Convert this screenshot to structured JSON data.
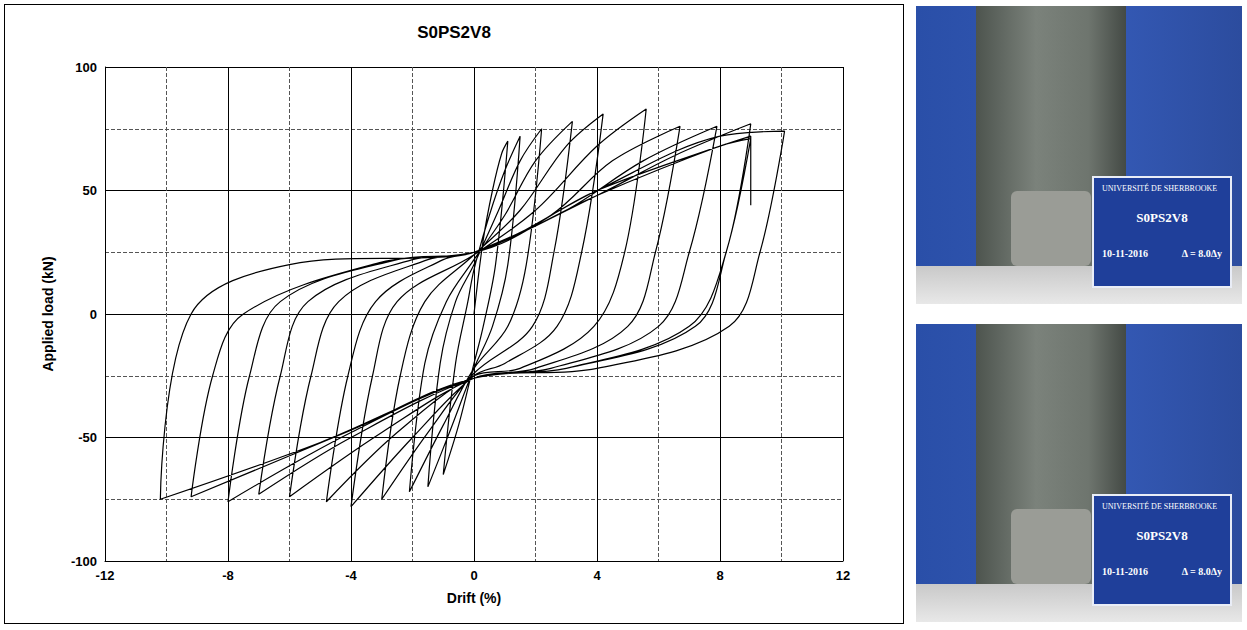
{
  "chart_data": {
    "type": "line",
    "title": "S0PS2V8",
    "x_label": "Drift (%)",
    "y_label": "Applied load (kN)",
    "xlim": [
      -12,
      12
    ],
    "xticks": [
      -12,
      -8,
      -4,
      0,
      4,
      8,
      12
    ],
    "ylim": [
      -100,
      100
    ],
    "yticks": [
      -100,
      -50,
      0,
      50,
      100
    ],
    "grid": true,
    "color": "#000000",
    "x": [
      0,
      0.3,
      0.6,
      0.9,
      1.1,
      0.7,
      0.3,
      0,
      -0.5,
      -1,
      -0.6,
      -0.2,
      0,
      0.5,
      1,
      1.5,
      1.1,
      0.6,
      0,
      -0.8,
      -1.5,
      -1.1,
      -0.6,
      0,
      0.8,
      1.5,
      2.2,
      1.7,
      1.1,
      0,
      -1,
      -2.1,
      -1.6,
      -0.9,
      0,
      1,
      2,
      3.2,
      2.6,
      1.9,
      0,
      -1.5,
      -3,
      -2.4,
      -1.6,
      0,
      1.5,
      3,
      4.2,
      3.5,
      2.7,
      1,
      0,
      -2,
      -4,
      -3.3,
      -2.5,
      0,
      2,
      4,
      5.6,
      4.9,
      3.9,
      1.5,
      0,
      -2.5,
      -4.8,
      -4.1,
      -3.2,
      -1,
      0,
      2.5,
      4.5,
      6.7,
      5.9,
      5,
      2,
      0,
      -3,
      -6,
      -5.3,
      -4.4,
      -1.5,
      0,
      3,
      5.5,
      7.9,
      7,
      6,
      2.5,
      0,
      -4,
      -7,
      -6.3,
      -5.4,
      -2,
      0,
      4,
      6.5,
      9,
      8.2,
      7,
      3,
      0,
      -4,
      -8,
      -7.3,
      -6.3,
      -2.5,
      0,
      4,
      8,
      10.1,
      9.3,
      8.3,
      4,
      0,
      -4,
      -9.2,
      -8.5,
      -7.5,
      -3,
      0,
      4,
      8,
      9,
      8.2,
      7.2,
      3,
      0,
      -5,
      -10.2,
      -9.2,
      -6,
      0,
      4,
      9,
      9
    ],
    "values": [
      0,
      30,
      50,
      65,
      70,
      20,
      -5,
      -20,
      -45,
      -65,
      -20,
      5,
      18,
      40,
      58,
      72,
      20,
      -5,
      -22,
      -48,
      -70,
      -20,
      5,
      20,
      42,
      62,
      75,
      20,
      -5,
      -22,
      -45,
      -72,
      -20,
      5,
      22,
      40,
      62,
      78,
      25,
      -5,
      -24,
      -48,
      -75,
      -25,
      5,
      24,
      42,
      68,
      81,
      25,
      -5,
      -20,
      -25,
      -50,
      -78,
      -25,
      5,
      24,
      42,
      68,
      83,
      25,
      -5,
      -22,
      -25,
      -48,
      -76,
      -25,
      5,
      22,
      25,
      40,
      62,
      76,
      25,
      -5,
      -22,
      -26,
      -48,
      -74,
      -25,
      5,
      22,
      25,
      42,
      62,
      76,
      25,
      -5,
      -22,
      -26,
      -50,
      -73,
      -25,
      5,
      22,
      25,
      48,
      64,
      77,
      25,
      -5,
      -22,
      -26,
      -48,
      -76,
      -25,
      5,
      22,
      25,
      50,
      72,
      74,
      25,
      -5,
      -22,
      -26,
      -47,
      -74,
      -25,
      0,
      21,
      25,
      48,
      68,
      71,
      25,
      -5,
      -22,
      -26,
      -52,
      -75,
      0,
      20,
      25,
      50,
      72,
      44
    ]
  },
  "photos": [
    {
      "university": "UNIVERSITÉ DE SHERBROOKE",
      "specimen": "S0PS2V8",
      "date": "10-11-2016",
      "drift": "Δ = 8.0Δy"
    },
    {
      "university": "UNIVERSITÉ DE SHERBROOKE",
      "specimen": "S0PS2V8",
      "date": "10-11-2016",
      "drift": "Δ = 8.0Δy"
    }
  ]
}
